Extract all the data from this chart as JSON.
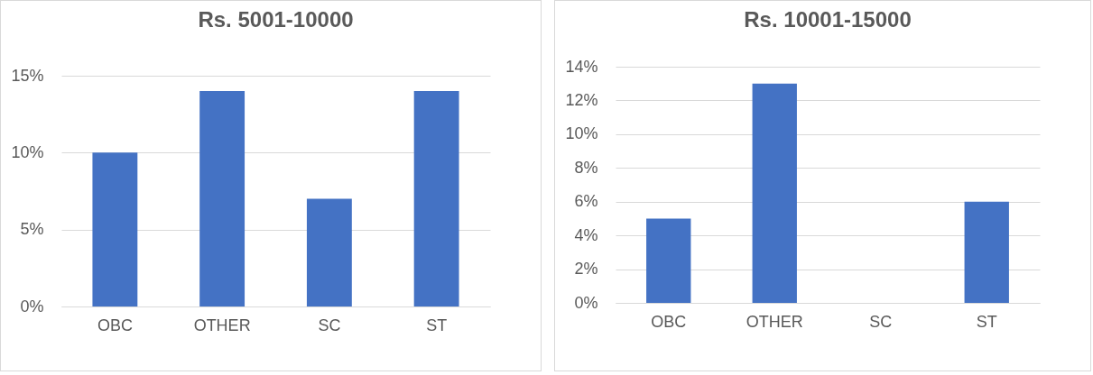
{
  "chart_data": [
    {
      "type": "bar",
      "title": "Rs. 5001-10000",
      "categories": [
        "OBC",
        "OTHER",
        "SC",
        "ST"
      ],
      "values": [
        10,
        14,
        7,
        14
      ],
      "color": "#4472c4",
      "ylim": [
        0,
        15
      ],
      "yticks": [
        {
          "value": 0,
          "label": "0%"
        },
        {
          "value": 5,
          "label": "5%"
        },
        {
          "value": 10,
          "label": "10%"
        },
        {
          "value": 15,
          "label": "15%"
        }
      ],
      "grid": "y"
    },
    {
      "type": "bar",
      "title": "Rs. 10001-15000",
      "categories": [
        "OBC",
        "OTHER",
        "SC",
        "ST"
      ],
      "values": [
        5,
        13,
        0,
        6
      ],
      "color": "#4472c4",
      "ylim": [
        0,
        14
      ],
      "yticks": [
        {
          "value": 0,
          "label": "0%"
        },
        {
          "value": 2,
          "label": "2%"
        },
        {
          "value": 4,
          "label": "4%"
        },
        {
          "value": 6,
          "label": "6%"
        },
        {
          "value": 8,
          "label": "8%"
        },
        {
          "value": 10,
          "label": "10%"
        },
        {
          "value": 12,
          "label": "12%"
        },
        {
          "value": 14,
          "label": "14%"
        }
      ],
      "grid": "y"
    }
  ]
}
